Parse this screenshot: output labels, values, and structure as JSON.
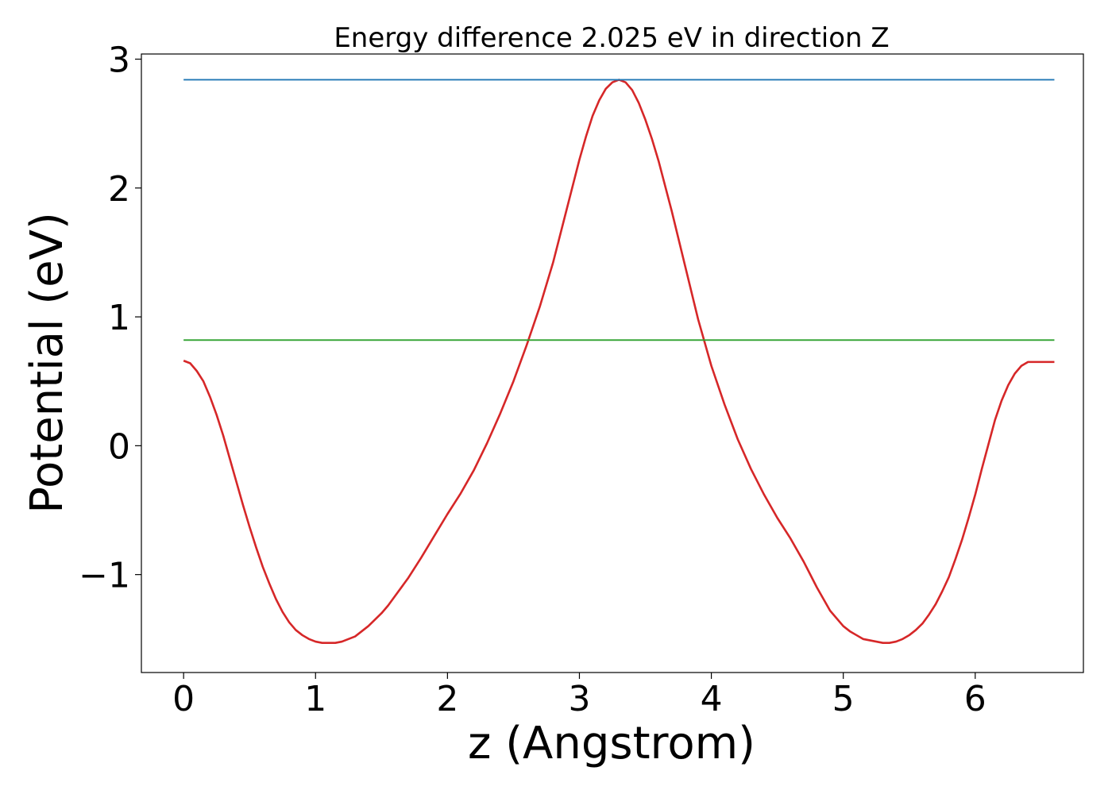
{
  "chart_data": {
    "type": "line",
    "title": "Energy difference 2.025 eV in direction Z",
    "xlabel": "z (Angstrom)",
    "ylabel": "Potential (eV)",
    "xlim": [
      -0.32,
      6.82
    ],
    "ylim": [
      -1.76,
      3.04
    ],
    "xticks": [
      0,
      1,
      2,
      3,
      4,
      5,
      6
    ],
    "yticks": [
      -1,
      0,
      1,
      2,
      3
    ],
    "ytick_labels": [
      "−1",
      "0",
      "1",
      "2",
      "3"
    ],
    "grid": false,
    "colors": {
      "potential": "#d62728",
      "max_line": "#1f77b4",
      "avg_line": "#2ca02c"
    },
    "series": [
      {
        "key": "potential",
        "x": [
          0,
          0.05,
          0.1,
          0.15,
          0.2,
          0.25,
          0.3,
          0.35,
          0.4,
          0.45,
          0.5,
          0.55,
          0.6,
          0.65,
          0.7,
          0.75,
          0.8,
          0.85,
          0.9,
          0.95,
          1.0,
          1.05,
          1.1,
          1.15,
          1.2,
          1.25,
          1.3,
          1.35,
          1.4,
          1.45,
          1.5,
          1.55,
          1.6,
          1.7,
          1.8,
          1.9,
          2.0,
          2.1,
          2.2,
          2.3,
          2.4,
          2.5,
          2.6,
          2.7,
          2.8,
          2.9,
          3.0,
          3.05,
          3.1,
          3.15,
          3.2,
          3.25,
          3.3,
          3.35,
          3.4,
          3.45,
          3.5,
          3.55,
          3.6,
          3.7,
          3.8,
          3.9,
          4.0,
          4.1,
          4.2,
          4.3,
          4.4,
          4.5,
          4.6,
          4.7,
          4.8,
          4.9,
          5.0,
          5.05,
          5.1,
          5.15,
          5.2,
          5.25,
          5.3,
          5.35,
          5.4,
          5.45,
          5.5,
          5.55,
          5.6,
          5.65,
          5.7,
          5.75,
          5.8,
          5.85,
          5.9,
          5.95,
          6.0,
          6.05,
          6.1,
          6.15,
          6.2,
          6.25,
          6.3,
          6.35,
          6.4,
          6.45,
          6.5,
          6.55,
          6.6
        ],
        "y": [
          0.66,
          0.64,
          0.58,
          0.5,
          0.38,
          0.24,
          0.08,
          -0.1,
          -0.28,
          -0.46,
          -0.63,
          -0.79,
          -0.94,
          -1.07,
          -1.19,
          -1.29,
          -1.37,
          -1.43,
          -1.47,
          -1.5,
          -1.52,
          -1.53,
          -1.53,
          -1.53,
          -1.52,
          -1.5,
          -1.48,
          -1.44,
          -1.4,
          -1.35,
          -1.3,
          -1.24,
          -1.17,
          -1.03,
          -0.87,
          -0.7,
          -0.53,
          -0.37,
          -0.19,
          0.02,
          0.25,
          0.5,
          0.78,
          1.08,
          1.42,
          1.82,
          2.22,
          2.4,
          2.56,
          2.68,
          2.77,
          2.82,
          2.84,
          2.82,
          2.76,
          2.66,
          2.53,
          2.38,
          2.21,
          1.82,
          1.4,
          0.98,
          0.62,
          0.32,
          0.05,
          -0.18,
          -0.38,
          -0.56,
          -0.72,
          -0.9,
          -1.1,
          -1.28,
          -1.4,
          -1.44,
          -1.47,
          -1.5,
          -1.51,
          -1.52,
          -1.53,
          -1.53,
          -1.52,
          -1.5,
          -1.47,
          -1.43,
          -1.38,
          -1.31,
          -1.23,
          -1.13,
          -1.02,
          -0.88,
          -0.73,
          -0.56,
          -0.38,
          -0.18,
          0.01,
          0.2,
          0.35,
          0.47,
          0.56,
          0.62,
          0.65,
          0.65,
          0.65,
          0.65,
          0.65
        ]
      },
      {
        "key": "max_line",
        "x": [
          0,
          6.6
        ],
        "y": [
          2.84,
          2.84
        ]
      },
      {
        "key": "avg_line",
        "x": [
          0,
          6.6
        ],
        "y": [
          0.82,
          0.82
        ]
      }
    ]
  }
}
